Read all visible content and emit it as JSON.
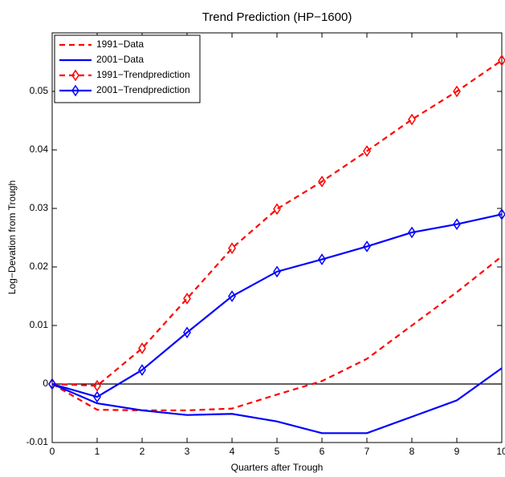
{
  "chart_data": {
    "type": "line",
    "title": "Trend Prediction (HP−1600)",
    "x_label": "Quarters after Trough",
    "y_label": "Log−Devation from Trough",
    "x": [
      0,
      1,
      2,
      3,
      4,
      5,
      6,
      7,
      8,
      9,
      10
    ],
    "series": [
      {
        "name": "1991−Data",
        "color": "#ff0000",
        "linestyle": "dashed",
        "marker": "none",
        "values": [
          0,
          -0.0044,
          -0.0045,
          -0.0045,
          -0.0042,
          -0.0018,
          0.0005,
          0.0043,
          0.01,
          0.0157,
          0.0218
        ]
      },
      {
        "name": "2001−Data",
        "color": "#0000ff",
        "linestyle": "solid",
        "marker": "none",
        "values": [
          0,
          -0.0033,
          -0.0045,
          -0.0053,
          -0.0051,
          -0.0064,
          -0.0084,
          -0.0084,
          -0.0056,
          -0.0028,
          0.0027
        ]
      },
      {
        "name": "1991−Trendprediction",
        "color": "#ff0000",
        "linestyle": "dashed",
        "marker": "diamond",
        "values": [
          0,
          -0.0003,
          0.0061,
          0.0146,
          0.0232,
          0.0299,
          0.0346,
          0.0398,
          0.0452,
          0.05,
          0.0553
        ]
      },
      {
        "name": "2001−Trendprediction",
        "color": "#0000ff",
        "linestyle": "solid",
        "marker": "diamond",
        "values": [
          0,
          -0.0022,
          0.0024,
          0.0088,
          0.015,
          0.0192,
          0.0213,
          0.0235,
          0.0259,
          0.0273,
          0.029
        ]
      }
    ],
    "xlim": [
      0,
      10
    ],
    "xticks": [
      0,
      1,
      2,
      3,
      4,
      5,
      6,
      7,
      8,
      9,
      10
    ],
    "ylim": [
      -0.01,
      0.06
    ],
    "yticks": [
      -0.01,
      0,
      0.01,
      0.02,
      0.03,
      0.04,
      0.05
    ],
    "zero_line": true,
    "grid": false,
    "legend": "upper left"
  }
}
